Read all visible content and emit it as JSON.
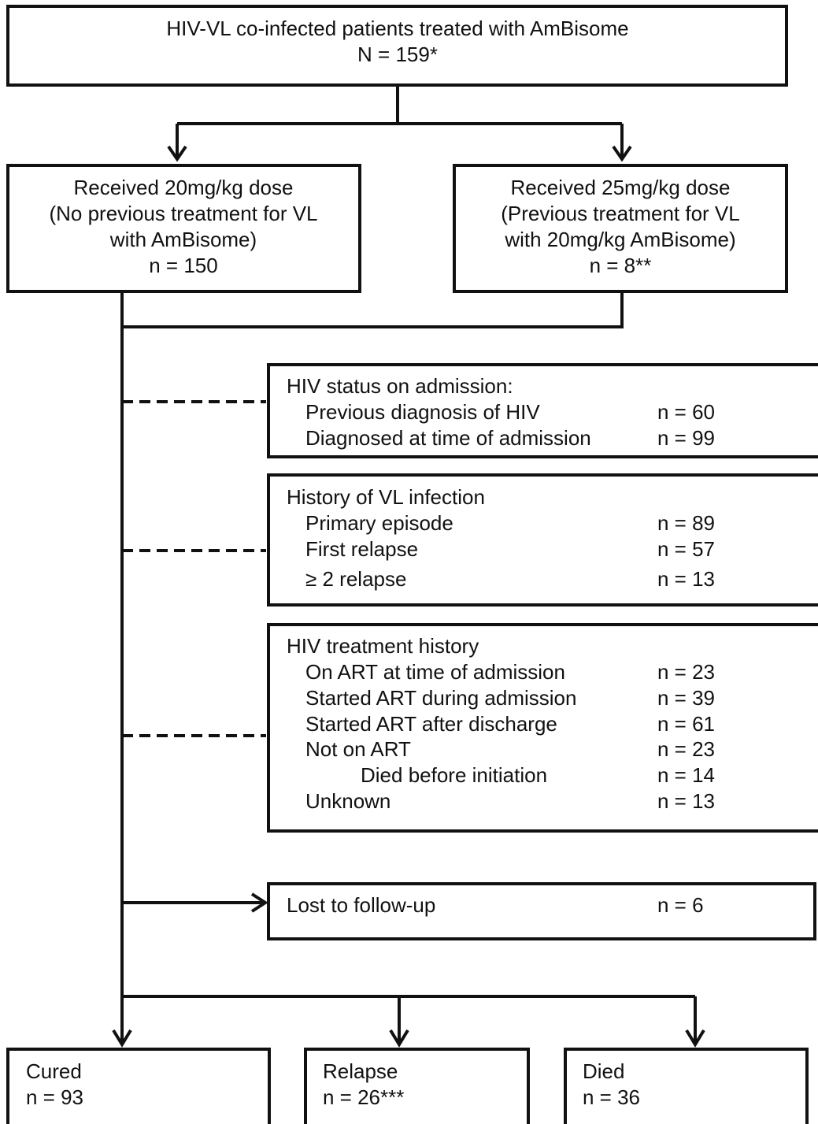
{
  "top": {
    "lines": [
      "HIV-VL co-infected patients treated with AmBisome",
      "N = 159*"
    ]
  },
  "arms": [
    {
      "lines": [
        "Received 20mg/kg dose",
        "(No previous treatment for VL",
        "with AmBisome)",
        "n = 150"
      ]
    },
    {
      "lines": [
        "Received 25mg/kg dose",
        "(Previous treatment for VL",
        "with 20mg/kg AmBisome)",
        "n = 8**"
      ]
    }
  ],
  "panels": [
    {
      "title": "HIV status on admission:",
      "rows": [
        {
          "label": "Previous diagnosis of HIV",
          "n": "n = 60"
        },
        {
          "label": "Diagnosed at time of admission",
          "n": "n = 99"
        }
      ]
    },
    {
      "title": "History of VL infection",
      "rows": [
        {
          "label": "Primary episode",
          "n": "n = 89"
        },
        {
          "label": "First relapse",
          "n": "n = 57"
        },
        {
          "label": "≥ 2 relapse",
          "n": "n = 13"
        }
      ]
    },
    {
      "title": "HIV treatment history",
      "rows": [
        {
          "label": "On ART at time of admission",
          "n": "n = 23"
        },
        {
          "label": "Started ART during admission",
          "n": "n = 39"
        },
        {
          "label": "Started ART after discharge",
          "n": "n = 61"
        },
        {
          "label": "Not on ART",
          "n": "n = 23"
        },
        {
          "label": "Died before initiation",
          "n": "n = 14"
        },
        {
          "label": "Unknown",
          "n": "n = 13"
        }
      ]
    }
  ],
  "lost": {
    "label": "Lost to follow-up",
    "n": "n = 6"
  },
  "outcomes": [
    {
      "label": "Cured",
      "n": "n = 93"
    },
    {
      "label": "Relapse",
      "n": "n = 26***"
    },
    {
      "label": "Died",
      "n": "n = 36"
    }
  ]
}
